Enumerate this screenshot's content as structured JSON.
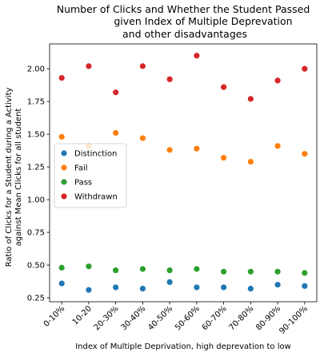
{
  "chart_data": {
    "type": "scatter",
    "title_lines": [
      "Number of Clicks and Whether the Student Passed",
      "given Index of Multiple Deprevation",
      "and other disadvantages"
    ],
    "xlabel": "Index of Multiple Deprivation, high deprevation to low",
    "ylabel_lines": [
      "Ratio of Clicks for a Student during a Activity",
      "against  Mean Clicks for all student"
    ],
    "categories": [
      "0-10%",
      "10-20",
      "20-30%",
      "30-40%",
      "40-50%",
      "50-60%",
      "60-70%",
      "70-80%",
      "80-90%",
      "90-100%"
    ],
    "ylim": [
      0.22,
      2.19
    ],
    "yticks": [
      0.25,
      0.5,
      0.75,
      1.0,
      1.25,
      1.5,
      1.75,
      2.0
    ],
    "ytick_labels": [
      "0.25",
      "0.50",
      "0.75",
      "1.00",
      "1.25",
      "1.50",
      "1.75",
      "2.00"
    ],
    "legend_position": "center-left",
    "grid": false,
    "series": [
      {
        "name": "Distinction",
        "color": "#1f77b4",
        "values": [
          0.36,
          0.31,
          0.33,
          0.32,
          0.37,
          0.33,
          0.33,
          0.32,
          0.35,
          0.34
        ]
      },
      {
        "name": "Fail",
        "color": "#ff7f0e",
        "values": [
          1.48,
          1.41,
          1.51,
          1.47,
          1.38,
          1.39,
          1.32,
          1.29,
          1.41,
          1.35
        ]
      },
      {
        "name": "Pass",
        "color": "#2ca02c",
        "values": [
          0.48,
          0.49,
          0.46,
          0.47,
          0.46,
          0.47,
          0.45,
          0.45,
          0.45,
          0.44
        ]
      },
      {
        "name": "Withdrawn",
        "color": "#d62728",
        "values": [
          1.93,
          2.02,
          1.82,
          2.02,
          1.92,
          2.1,
          1.86,
          1.77,
          1.91,
          2.0
        ]
      }
    ]
  }
}
